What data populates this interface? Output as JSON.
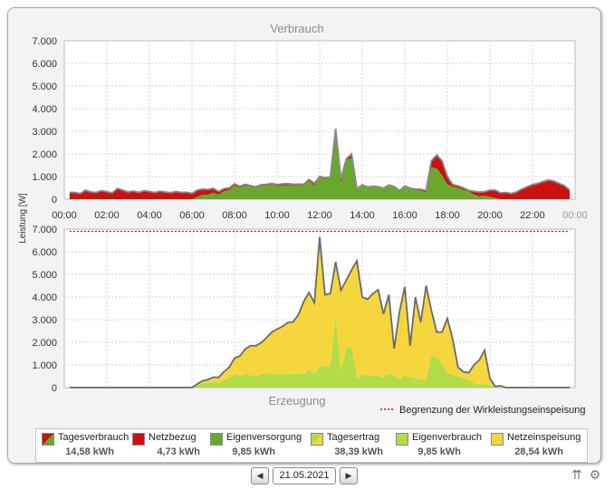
{
  "top_chart": {
    "title": "Verbrauch",
    "y_ticks": [
      "7.000",
      "6.000",
      "5.000",
      "4.000",
      "3.000",
      "2.000",
      "1.000",
      "0"
    ],
    "x_ticks": [
      "00:00",
      "02:00",
      "04:00",
      "06:00",
      "08:00",
      "10:00",
      "12:00",
      "14:00",
      "16:00",
      "18:00",
      "20:00",
      "22:00",
      "00:00"
    ]
  },
  "bottom_chart": {
    "title": "Erzeugung",
    "y_ticks": [
      "7.000",
      "6.000",
      "5.000",
      "4.000",
      "3.000",
      "2.000",
      "1.000",
      "0"
    ],
    "limit_label": "Begrenzung der Wirkleistungseinspeisung"
  },
  "y_axis_label": "Leistung [W]",
  "legend": [
    {
      "label": "Tagesverbrauch",
      "value": "14,58 kWh"
    },
    {
      "label": "Netzbezug",
      "value": "4,73 kWh"
    },
    {
      "label": "Eigenversorgung",
      "value": "9,85 kWh"
    },
    {
      "label": "Tagesertrag",
      "value": "38,39 kWh"
    },
    {
      "label": "Eigenverbrauch",
      "value": "9,85 kWh"
    },
    {
      "label": "Netzeinspeisung",
      "value": "28,54 kWh"
    }
  ],
  "date": "21.05.2021",
  "icons": {
    "prev": "arrow-left-icon",
    "next": "arrow-right-icon",
    "tools": "settings-icon"
  },
  "colors": {
    "red": "#cc1111",
    "green": "#6aa82c",
    "yellow": "#f5d63d",
    "lightgreen": "#b2dc48",
    "outline": "#6a6a6a",
    "limit": "#a01d1d"
  },
  "chart_data": [
    {
      "type": "area",
      "title": "Verbrauch",
      "ylabel": "Leistung [W]",
      "ylim": [
        0,
        7000
      ],
      "xlim": [
        0,
        24
      ],
      "grid": true,
      "series": [
        {
          "name": "Netzbezug",
          "x": [
            0.25,
            0.5,
            0.75,
            1,
            1.25,
            1.5,
            1.75,
            2,
            2.25,
            2.5,
            2.75,
            3,
            3.25,
            3.5,
            3.75,
            4,
            4.25,
            4.5,
            4.75,
            5,
            5.25,
            5.5,
            5.75,
            6,
            6.25,
            6.5,
            6.75,
            7,
            7.25,
            7.5,
            7.75,
            8,
            8.25,
            8.5,
            8.75,
            9,
            9.25,
            9.5,
            9.75,
            10,
            10.25,
            10.5,
            10.75,
            11,
            11.25,
            11.5,
            11.75,
            12,
            12.25,
            12.5,
            12.75,
            13,
            13.25,
            13.5,
            13.75,
            14,
            14.25,
            14.5,
            14.75,
            15,
            15.25,
            15.5,
            15.75,
            16,
            16.25,
            16.5,
            16.75,
            17,
            17.25,
            17.5,
            17.75,
            18,
            18.25,
            18.5,
            18.75,
            19,
            19.25,
            19.5,
            19.75,
            20,
            20.25,
            20.5,
            20.75,
            21,
            21.25,
            21.5,
            21.75,
            22,
            22.25,
            22.5,
            22.75,
            23,
            23.25,
            23.5,
            23.75
          ],
          "values": [
            300,
            300,
            250,
            400,
            320,
            300,
            380,
            330,
            280,
            480,
            400,
            320,
            360,
            300,
            380,
            340,
            300,
            350,
            320,
            290,
            340,
            300,
            310,
            260,
            300,
            250,
            230,
            200,
            140,
            120,
            100,
            80,
            70,
            60,
            50,
            50,
            60,
            60,
            50,
            60,
            80,
            70,
            60,
            50,
            60,
            80,
            100,
            60,
            50,
            40,
            60,
            200,
            30,
            200,
            60,
            40,
            40,
            30,
            30,
            40,
            30,
            40,
            30,
            40,
            40,
            50,
            60,
            80,
            300,
            600,
            650,
            350,
            100,
            90,
            100,
            40,
            150,
            200,
            180,
            300,
            350,
            280,
            300,
            250,
            320,
            450,
            550,
            650,
            700,
            780,
            850,
            800,
            700,
            600,
            400
          ]
        },
        {
          "name": "Eigenversorgung",
          "x": [
            0.25,
            0.5,
            0.75,
            1,
            1.25,
            1.5,
            1.75,
            2,
            2.25,
            2.5,
            2.75,
            3,
            3.25,
            3.5,
            3.75,
            4,
            4.25,
            4.5,
            4.75,
            5,
            5.25,
            5.5,
            5.75,
            6,
            6.25,
            6.5,
            6.75,
            7,
            7.25,
            7.5,
            7.75,
            8,
            8.25,
            8.5,
            8.75,
            9,
            9.25,
            9.5,
            9.75,
            10,
            10.25,
            10.5,
            10.75,
            11,
            11.25,
            11.5,
            11.75,
            12,
            12.25,
            12.5,
            12.75,
            13,
            13.25,
            13.5,
            13.75,
            14,
            14.25,
            14.5,
            14.75,
            15,
            15.25,
            15.5,
            15.75,
            16,
            16.25,
            16.5,
            16.75,
            17,
            17.25,
            17.5,
            17.75,
            18,
            18.25,
            18.5,
            18.75,
            19,
            19.25,
            19.5,
            19.75,
            20,
            20.25,
            20.5,
            20.75,
            21,
            21.25,
            21.5,
            21.75,
            22,
            22.25,
            22.5,
            22.75,
            23,
            23.25,
            23.5,
            23.75
          ],
          "values": [
            0,
            0,
            0,
            0,
            0,
            0,
            0,
            0,
            0,
            0,
            0,
            0,
            0,
            0,
            0,
            0,
            0,
            0,
            0,
            0,
            0,
            0,
            0,
            0,
            100,
            200,
            200,
            280,
            200,
            350,
            400,
            600,
            500,
            600,
            550,
            500,
            580,
            600,
            650,
            580,
            600,
            620,
            600,
            620,
            600,
            800,
            600,
            950,
            900,
            950,
            3050,
            700,
            1750,
            1800,
            400,
            600,
            500,
            550,
            520,
            450,
            600,
            520,
            350,
            550,
            450,
            400,
            380,
            300,
            1400,
            1350,
            1050,
            650,
            550,
            500,
            400,
            350,
            200,
            120,
            150,
            100,
            50,
            0,
            0,
            0,
            0,
            0,
            0,
            0,
            0,
            0,
            0,
            0,
            0,
            0,
            0
          ]
        }
      ]
    },
    {
      "type": "area",
      "title": "Erzeugung",
      "ylabel": "Leistung [W]",
      "ylim": [
        0,
        7000
      ],
      "xlim": [
        0,
        24
      ],
      "grid": true,
      "limit_line": 6900,
      "series": [
        {
          "name": "Netzeinspeisung",
          "x": [
            0.25,
            6,
            6.25,
            6.5,
            6.75,
            7,
            7.25,
            7.5,
            7.75,
            8,
            8.25,
            8.5,
            8.75,
            9,
            9.25,
            9.5,
            9.75,
            10,
            10.25,
            10.5,
            10.75,
            11,
            11.25,
            11.5,
            11.75,
            12,
            12.25,
            12.5,
            12.75,
            13,
            13.25,
            13.5,
            13.75,
            14,
            14.25,
            14.5,
            14.75,
            15,
            15.25,
            15.5,
            15.75,
            16,
            16.25,
            16.5,
            16.75,
            17,
            17.25,
            17.5,
            17.75,
            18,
            18.25,
            18.5,
            18.75,
            19,
            19.25,
            19.5,
            19.75,
            20,
            20.25,
            20.5,
            20.75,
            21,
            21.25,
            21.5,
            21.75,
            22,
            22.25,
            22.5,
            22.75,
            23,
            23.75
          ],
          "values": [
            0,
            0,
            60,
            100,
            150,
            180,
            250,
            350,
            500,
            700,
            900,
            1100,
            1300,
            1350,
            1400,
            1600,
            1800,
            2000,
            2100,
            2250,
            2300,
            2600,
            3200,
            3400,
            3150,
            5700,
            3200,
            3200,
            2500,
            3600,
            3000,
            3400,
            5200,
            3400,
            3400,
            3600,
            3800,
            2800,
            3500,
            1200,
            3000,
            3900,
            1400,
            3600,
            2500,
            4200,
            2000,
            1100,
            1400,
            2400,
            1600,
            400,
            300,
            300,
            800,
            1100,
            1500,
            300,
            0,
            80,
            0,
            0,
            0,
            0,
            0,
            0,
            0,
            0,
            0,
            0,
            0
          ]
        },
        {
          "name": "Eigenverbrauch",
          "x": [
            0.25,
            6,
            6.25,
            6.5,
            6.75,
            7,
            7.25,
            7.5,
            7.75,
            8,
            8.25,
            8.5,
            8.75,
            9,
            9.25,
            9.5,
            9.75,
            10,
            10.25,
            10.5,
            10.75,
            11,
            11.25,
            11.5,
            11.75,
            12,
            12.25,
            12.5,
            12.75,
            13,
            13.25,
            13.5,
            13.75,
            14,
            14.25,
            14.5,
            14.75,
            15,
            15.25,
            15.5,
            15.75,
            16,
            16.25,
            16.5,
            16.75,
            17,
            17.25,
            17.5,
            17.75,
            18,
            18.25,
            18.5,
            18.75,
            19,
            19.25,
            19.5,
            19.75,
            20,
            20.25,
            20.5,
            20.75,
            21,
            21.25,
            21.5,
            21.75,
            22,
            22.25,
            22.5,
            22.75,
            23,
            23.75
          ],
          "values": [
            0,
            0,
            100,
            200,
            200,
            280,
            200,
            350,
            400,
            600,
            500,
            600,
            550,
            500,
            580,
            600,
            650,
            580,
            600,
            620,
            600,
            620,
            600,
            800,
            600,
            950,
            900,
            950,
            3050,
            700,
            1750,
            1800,
            400,
            600,
            500,
            550,
            520,
            450,
            600,
            520,
            350,
            550,
            450,
            400,
            380,
            300,
            1400,
            1350,
            1050,
            650,
            550,
            500,
            400,
            350,
            200,
            120,
            150,
            100,
            50,
            0,
            0,
            0,
            0,
            0,
            0,
            0,
            0,
            0,
            0,
            0,
            0
          ]
        }
      ]
    }
  ]
}
